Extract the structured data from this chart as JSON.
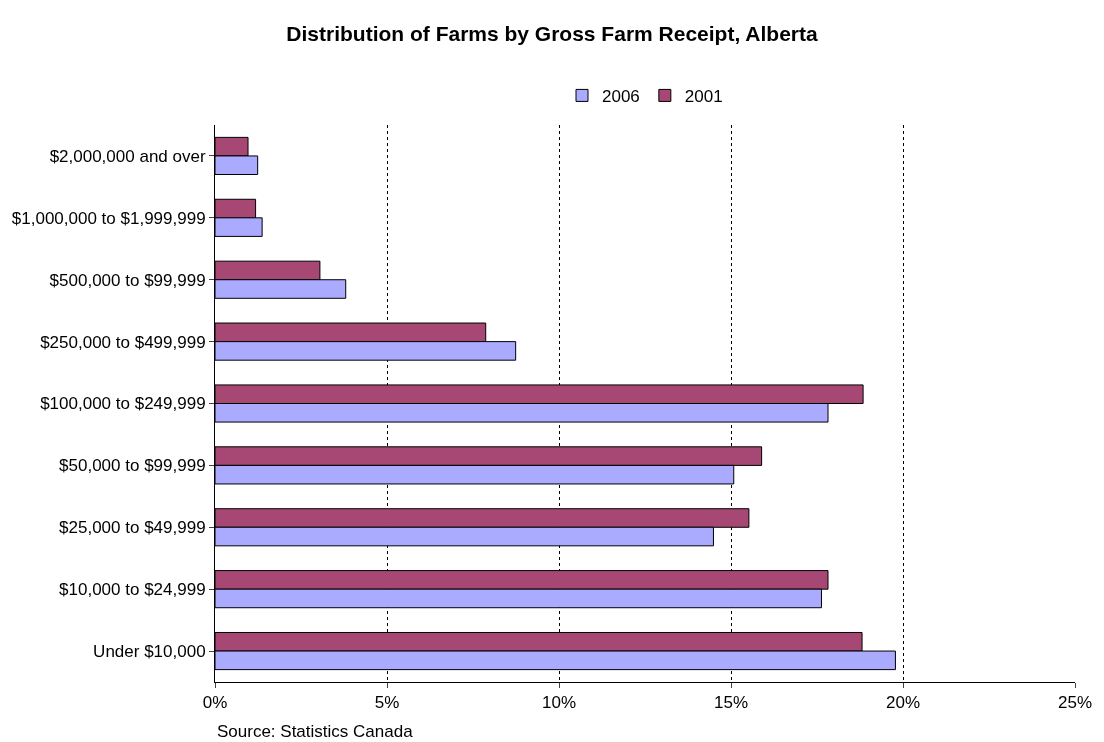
{
  "chart_data": {
    "type": "bar",
    "orientation": "horizontal",
    "title": "Distribution of Farms by Gross Farm Receipt, Alberta",
    "categories": [
      "$2,000,000 and over",
      "$1,000,000 to $1,999,999",
      "$500,000 to $99,999",
      "$250,000 to $499,999",
      "$100,000 to $249,999",
      "$50,000 to $99,999",
      "$25,000 to $49,999",
      "$10,000 to $24,999",
      "Under $10,000"
    ],
    "series": [
      {
        "name": "2001",
        "color": "#a64873",
        "values": [
          0.96,
          1.18,
          3.05,
          7.87,
          18.84,
          15.89,
          15.52,
          17.82,
          18.81
        ]
      },
      {
        "name": "2006",
        "color": "#aaaaff",
        "values": [
          1.24,
          1.37,
          3.8,
          8.74,
          17.82,
          15.08,
          14.49,
          17.63,
          19.78
        ]
      }
    ],
    "xlim": [
      0,
      25
    ],
    "xticks": [
      {
        "value": 0,
        "label": "0%"
      },
      {
        "value": 5,
        "label": "5%"
      },
      {
        "value": 10,
        "label": "10%"
      },
      {
        "value": 15,
        "label": "15%"
      },
      {
        "value": 20,
        "label": "20%"
      },
      {
        "value": 25,
        "label": "25%"
      }
    ],
    "grid": "x",
    "legend": "top",
    "annotations": [
      "Source: Statistics Canada"
    ]
  }
}
